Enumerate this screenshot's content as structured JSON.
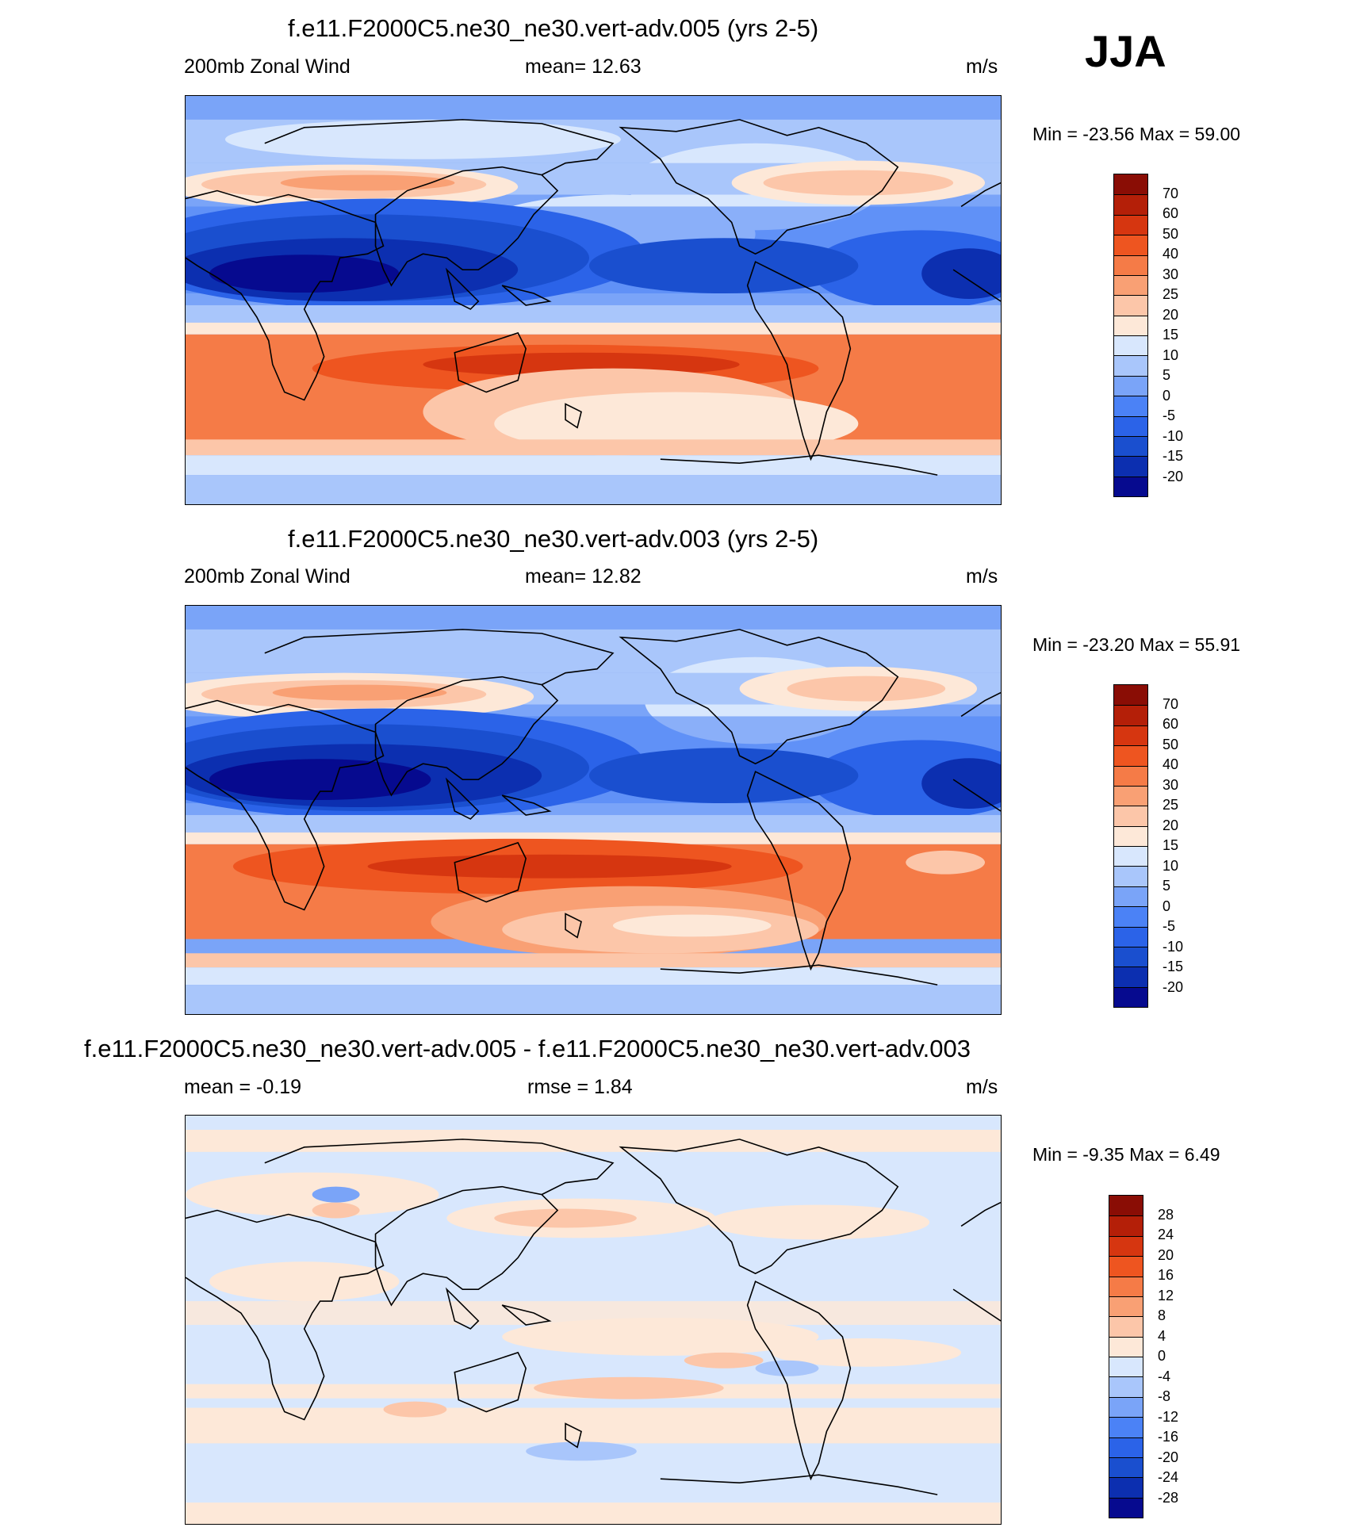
{
  "season": "JJA",
  "colors": {
    "full": [
      "#060a8f",
      "#0c2fb0",
      "#1a4fcf",
      "#2b63e8",
      "#4b82f6",
      "#7aa4f8",
      "#a9c6fb",
      "#d8e7fd",
      "#fde8d8",
      "#fcc6a9",
      "#f9a074",
      "#f57b47",
      "#ee5520",
      "#d63610",
      "#b41f08",
      "#8a0d05"
    ],
    "diff": [
      "#060a8f",
      "#0c2fb0",
      "#1a4fcf",
      "#2b63e8",
      "#4b82f6",
      "#7aa4f8",
      "#a9c6fb",
      "#d8e7fd",
      "#fde8d8",
      "#fcc6a9",
      "#f9a074",
      "#f57b47",
      "#ee5520",
      "#d63610",
      "#b41f08",
      "#8a0d05"
    ]
  },
  "panels": [
    {
      "title": "f.e11.F2000C5.ne30_ne30.vert-adv.005 (yrs 2-5)",
      "left": "200mb Zonal Wind",
      "center": "mean=  12.63",
      "units": "m/s",
      "minmax": "Min = -23.56 Max =  59.00",
      "palette": "full",
      "levels": [
        "70",
        "60",
        "50",
        "40",
        "30",
        "25",
        "20",
        "15",
        "10",
        "5",
        "0",
        "-5",
        "-10",
        "-15",
        "-20"
      ]
    },
    {
      "title": "f.e11.F2000C5.ne30_ne30.vert-adv.003 (yrs 2-5)",
      "left": "200mb Zonal Wind",
      "center": "mean=  12.82",
      "units": "m/s",
      "minmax": "Min = -23.20 Max =  55.91",
      "palette": "full",
      "levels": [
        "70",
        "60",
        "50",
        "40",
        "30",
        "25",
        "20",
        "15",
        "10",
        "5",
        "0",
        "-5",
        "-10",
        "-15",
        "-20"
      ]
    },
    {
      "title": "f.e11.F2000C5.ne30_ne30.vert-adv.005 - f.e11.F2000C5.ne30_ne30.vert-adv.003",
      "left": "mean =  -0.19",
      "center": "rmse =   1.84",
      "units": "m/s",
      "minmax": "Min =  -9.35 Max =   6.49",
      "palette": "diff",
      "levels": [
        "28",
        "24",
        "20",
        "16",
        "12",
        "8",
        "4",
        "0",
        "-4",
        "-8",
        "-12",
        "-16",
        "-20",
        "-24",
        "-28"
      ]
    }
  ]
}
